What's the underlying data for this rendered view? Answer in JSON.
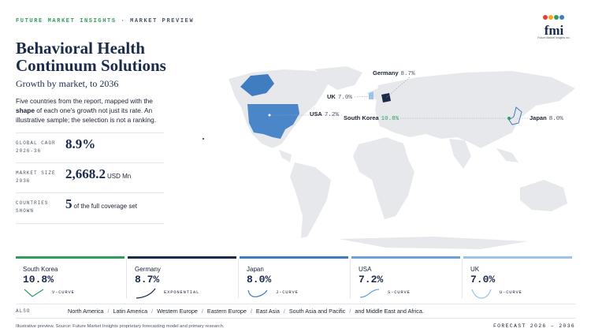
{
  "header": {
    "brand": "FUTURE MARKET INSIGHTS",
    "separator": "·",
    "section": "MARKET PREVIEW",
    "logo": "fmi",
    "logo_sub": "Future Market Insights Inc."
  },
  "title": "Behavioral Health Continuum Solutions",
  "subtitle": "Growth by market, to 2036",
  "description": {
    "before": "Five countries from the report, mapped with the",
    "bold": "shape",
    "after": "of each one's growth not just its rate. An illustrative sample; the selection is not a ranking."
  },
  "stats": [
    {
      "label_1": "GLOBAL CAGR",
      "label_2": "2026-36",
      "value": "8.9%"
    },
    {
      "label_1": "MARKET SIZE",
      "label_2": "2036",
      "value": "2,668.2",
      "unit": "USD Mn"
    },
    {
      "label_1": "COUNTRIES",
      "label_2": "SHOWN",
      "value": "5",
      "unit": "of the full coverage set"
    }
  ],
  "markets": [
    {
      "name": "South Korea",
      "rate": "10.8%",
      "curve": "V-CURVE",
      "color": "#2e9e5b"
    },
    {
      "name": "Germany",
      "rate": "8.7%",
      "curve": "EXPONENTIAL",
      "color": "#1b2a4a"
    },
    {
      "name": "Japan",
      "rate": "8.0%",
      "curve": "J-CURVE",
      "color": "#3f7cc0"
    },
    {
      "name": "USA",
      "rate": "7.2%",
      "curve": "S-CURVE",
      "color": "#6aa2d8"
    },
    {
      "name": "UK",
      "rate": "7.0%",
      "curve": "U-CURVE",
      "color": "#9cc3e8"
    }
  ],
  "also": {
    "label": "ALSO",
    "separator": "/",
    "regions": [
      "North America",
      "Latin America",
      "Western Europe",
      "Eastern Europe",
      "East Asia",
      "South Asia and Pacific",
      "and Middle East and Africa."
    ]
  },
  "footer": {
    "source": "Illustrative preview. Source: Future Market Insights proprietary forecasting model and primary research.",
    "forecast": "FORECAST 2026 – 2036"
  }
}
